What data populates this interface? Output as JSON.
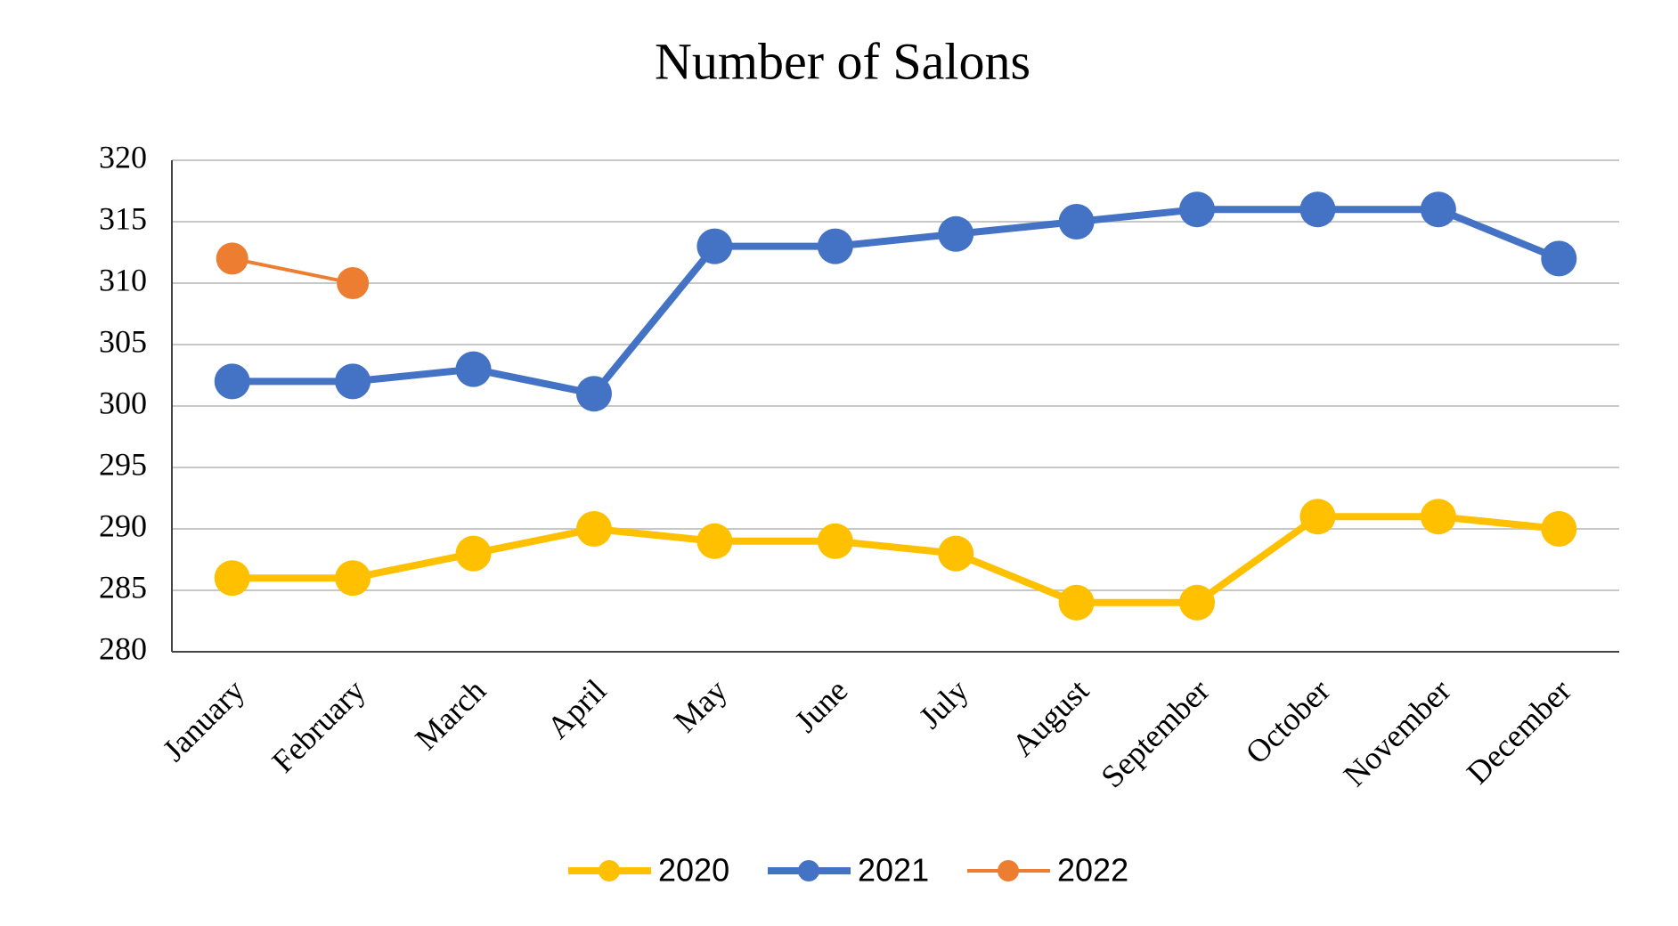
{
  "chart_data": {
    "type": "line",
    "title": "Number of Salons",
    "categories": [
      "January",
      "February",
      "March",
      "April",
      "May",
      "June",
      "July",
      "August",
      "September",
      "October",
      "November",
      "December"
    ],
    "series": [
      {
        "name": "2020",
        "color": "#FFC000",
        "values": [
          286,
          286,
          288,
          290,
          289,
          289,
          288,
          284,
          284,
          291,
          291,
          290
        ]
      },
      {
        "name": "2021",
        "color": "#4472C4",
        "values": [
          302,
          302,
          303,
          301,
          313,
          313,
          314,
          315,
          316,
          316,
          316,
          312
        ]
      },
      {
        "name": "2022",
        "color": "#ED7D31",
        "values": [
          312,
          310,
          null,
          null,
          null,
          null,
          null,
          null,
          null,
          null,
          null,
          null
        ]
      }
    ],
    "ylim": [
      280,
      320
    ],
    "yticks": [
      280,
      285,
      290,
      295,
      300,
      305,
      310,
      315,
      320
    ],
    "grid": true,
    "legend": "bottom"
  }
}
